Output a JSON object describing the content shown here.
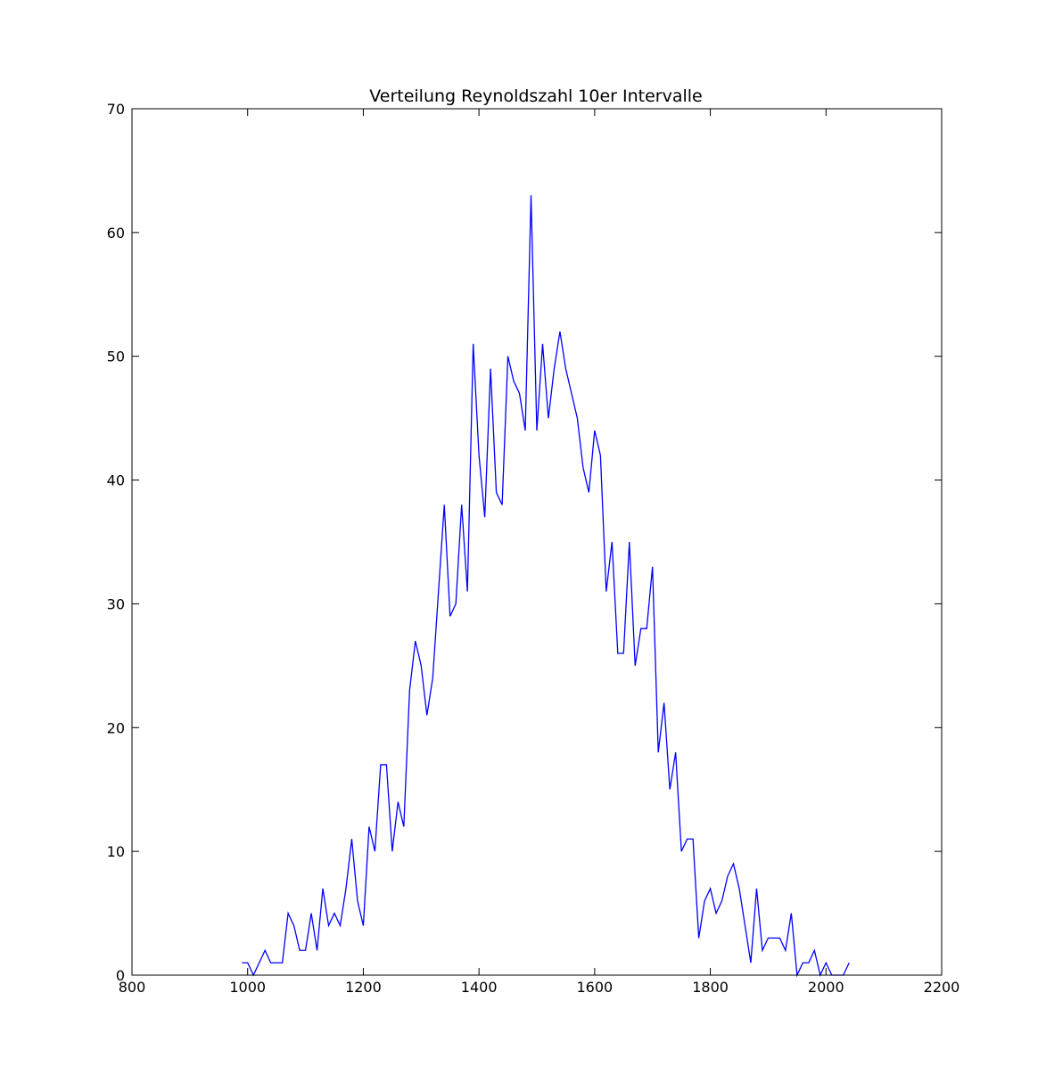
{
  "chart_data": {
    "type": "line",
    "title": "Verteilung Reynoldszahl 10er Intervalle",
    "xlabel": "",
    "ylabel": "",
    "xlim": [
      800,
      2200
    ],
    "ylim": [
      0,
      70
    ],
    "xticks": [
      800,
      1000,
      1200,
      1400,
      1600,
      1800,
      2000,
      2200
    ],
    "yticks": [
      0,
      10,
      20,
      30,
      40,
      50,
      60,
      70
    ],
    "grid": false,
    "line_color": "#0000ff",
    "x": [
      990,
      1000,
      1010,
      1020,
      1030,
      1040,
      1050,
      1060,
      1070,
      1080,
      1090,
      1100,
      1110,
      1120,
      1130,
      1140,
      1150,
      1160,
      1170,
      1180,
      1190,
      1200,
      1210,
      1220,
      1230,
      1240,
      1250,
      1260,
      1270,
      1280,
      1290,
      1300,
      1310,
      1320,
      1330,
      1340,
      1350,
      1360,
      1370,
      1380,
      1390,
      1400,
      1410,
      1420,
      1430,
      1440,
      1450,
      1460,
      1470,
      1480,
      1490,
      1500,
      1510,
      1520,
      1530,
      1540,
      1550,
      1560,
      1570,
      1580,
      1590,
      1600,
      1610,
      1620,
      1630,
      1640,
      1650,
      1660,
      1670,
      1680,
      1690,
      1700,
      1710,
      1720,
      1730,
      1740,
      1750,
      1760,
      1770,
      1780,
      1790,
      1800,
      1810,
      1820,
      1830,
      1840,
      1850,
      1860,
      1870,
      1880,
      1890,
      1900,
      1910,
      1920,
      1930,
      1940,
      1950,
      1960,
      1970,
      1980,
      1990,
      2000,
      2010,
      2020,
      2030,
      2040
    ],
    "y": [
      1,
      1,
      0,
      1,
      2,
      1,
      1,
      1,
      5,
      4,
      2,
      2,
      5,
      2,
      7,
      4,
      5,
      4,
      7,
      11,
      6,
      4,
      12,
      10,
      17,
      17,
      10,
      14,
      12,
      23,
      27,
      25,
      21,
      24,
      31,
      38,
      29,
      30,
      38,
      31,
      51,
      42,
      37,
      49,
      39,
      38,
      50,
      48,
      47,
      44,
      63,
      44,
      51,
      45,
      49,
      52,
      49,
      47,
      45,
      41,
      39,
      44,
      42,
      31,
      35,
      26,
      26,
      35,
      25,
      28,
      28,
      33,
      18,
      22,
      15,
      18,
      10,
      11,
      11,
      3,
      6,
      7,
      5,
      6,
      8,
      9,
      7,
      4,
      1,
      7,
      2,
      3,
      3,
      3,
      2,
      5,
      0,
      1,
      1,
      2,
      0,
      1,
      0,
      0,
      0,
      1
    ]
  }
}
